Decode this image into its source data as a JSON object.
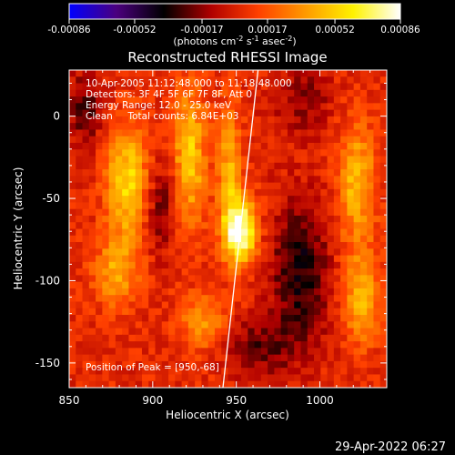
{
  "chart_data": {
    "type": "heatmap",
    "title": "Reconstructed RHESSI Image",
    "xlabel": "Heliocentric X (arcsec)",
    "ylabel": "Heliocentric Y (arcsec)",
    "xlim": [
      850,
      1040
    ],
    "ylim": [
      -165,
      28
    ],
    "xticks": [
      850,
      900,
      950,
      1000
    ],
    "yticks": [
      -150,
      -100,
      -50,
      0
    ],
    "colorbar": {
      "ticks": [
        "-0.00086",
        "-0.00052",
        "-0.00017",
        "0.00017",
        "0.00052",
        "0.00086"
      ],
      "range": [
        -0.00086,
        0.00086
      ],
      "units_label": "(photons cm",
      "units_sup1": "-2",
      "units_s": " s",
      "units_sup2": "-1",
      "units_asec": " asec",
      "units_sup3": "-2",
      "units_close": ")",
      "colors": [
        "#0000ff",
        "#4b007e",
        "#000000",
        "#b00000",
        "#ff4000",
        "#ff9a00",
        "#fff200",
        "#ffffff"
      ]
    },
    "annotations": [
      "10-Apr-2005 11:12:48.000 to 11:18:48.000",
      "Detectors: 3F 4F 5F 6F 7F 8F, Att 0",
      "Energy Range: 12.0 - 25.0 keV",
      "Clean     Total counts: 6.84E+03"
    ],
    "peak_label": "Position of Peak = [950,-68]",
    "peak": [
      950,
      -68
    ],
    "sources": [
      {
        "x": 952,
        "y": -70,
        "sx": 7,
        "sy": 14,
        "amp": 1.0
      },
      {
        "x": 946,
        "y": -30,
        "sx": 5,
        "sy": 25,
        "amp": 0.45
      },
      {
        "x": 922,
        "y": -25,
        "sx": 7,
        "sy": 30,
        "amp": 0.55
      },
      {
        "x": 885,
        "y": -40,
        "sx": 9,
        "sy": 25,
        "amp": 0.6
      },
      {
        "x": 878,
        "y": -95,
        "sx": 9,
        "sy": 15,
        "amp": 0.4
      },
      {
        "x": 930,
        "y": -125,
        "sx": 10,
        "sy": 12,
        "amp": 0.35
      },
      {
        "x": 1022,
        "y": -40,
        "sx": 8,
        "sy": 25,
        "amp": 0.5
      },
      {
        "x": 1025,
        "y": -110,
        "sx": 8,
        "sy": 20,
        "amp": 0.45
      },
      {
        "x": 905,
        "y": -55,
        "sx": 7,
        "sy": 20,
        "amp": -0.3
      },
      {
        "x": 988,
        "y": -95,
        "sx": 12,
        "sy": 30,
        "amp": -0.45
      },
      {
        "x": 965,
        "y": -140,
        "sx": 15,
        "sy": 12,
        "amp": -0.3
      },
      {
        "x": 860,
        "y": 5,
        "sx": 8,
        "sy": 15,
        "amp": -0.35
      },
      {
        "x": 990,
        "y": 10,
        "sx": 12,
        "sy": 15,
        "amp": -0.25
      }
    ],
    "limb": {
      "x0": 963,
      "y0": 28,
      "x1": 942,
      "y1": -165
    },
    "grid": false
  },
  "footer": {
    "timestamp": "29-Apr-2022 06:27"
  }
}
